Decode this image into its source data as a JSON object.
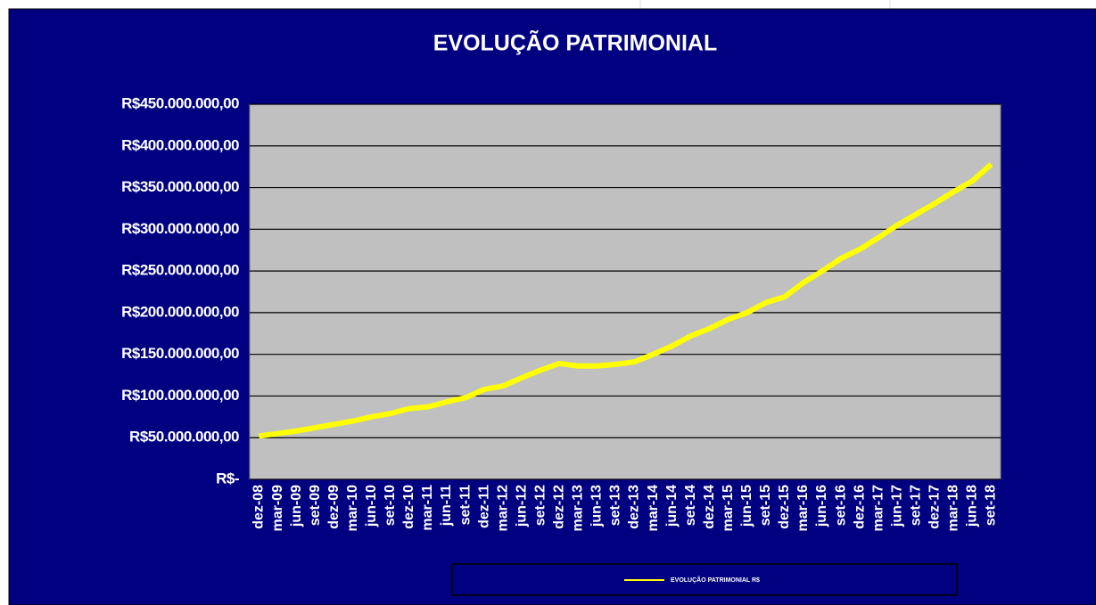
{
  "chart_data": {
    "type": "line",
    "title": "EVOLUÇÃO PATRIMONIAL",
    "categories": [
      "dez-08",
      "mar-09",
      "jun-09",
      "set-09",
      "dez-09",
      "mar-10",
      "jun-10",
      "set-10",
      "dez-10",
      "mar-11",
      "jun-11",
      "set-11",
      "dez-11",
      "mar-12",
      "jun-12",
      "set-12",
      "dez-12",
      "mar-13",
      "jun-13",
      "set-13",
      "dez-13",
      "mar-14",
      "jun-14",
      "set-14",
      "dez-14",
      "mar-15",
      "jun-15",
      "set-15",
      "dez-15",
      "mar-16",
      "jun-16",
      "set-16",
      "dez-16",
      "mar-17",
      "jun-17",
      "set-17",
      "dez-17",
      "mar-18",
      "jun-18",
      "set-18"
    ],
    "series": [
      {
        "name": "EVOLUÇÃO PATRIMONIAL R$",
        "color": "#ffff00",
        "values": [
          52000000,
          55000000,
          58000000,
          62000000,
          66000000,
          70000000,
          75000000,
          79000000,
          85000000,
          87000000,
          93000000,
          98000000,
          108000000,
          112000000,
          122000000,
          131000000,
          139000000,
          136000000,
          136000000,
          138000000,
          141000000,
          150000000,
          160000000,
          172000000,
          181000000,
          192000000,
          200000000,
          212000000,
          219000000,
          236000000,
          250000000,
          265000000,
          276000000,
          290000000,
          305000000,
          318000000,
          331000000,
          345000000,
          358000000,
          378000000
        ]
      }
    ],
    "ylim": [
      0,
      450000000
    ],
    "yticks": [
      {
        "value": 0,
        "label": "R$-"
      },
      {
        "value": 50000000,
        "label": "R$50.000.000,00"
      },
      {
        "value": 100000000,
        "label": "R$100.000.000,00"
      },
      {
        "value": 150000000,
        "label": "R$150.000.000,00"
      },
      {
        "value": 200000000,
        "label": "R$200.000.000,00"
      },
      {
        "value": 250000000,
        "label": "R$250.000.000,00"
      },
      {
        "value": 300000000,
        "label": "R$300.000.000,00"
      },
      {
        "value": 350000000,
        "label": "R$350.000.000,00"
      },
      {
        "value": 400000000,
        "label": "R$400.000.000,00"
      },
      {
        "value": 450000000,
        "label": "R$450.000.000,00"
      }
    ],
    "grid": true
  }
}
